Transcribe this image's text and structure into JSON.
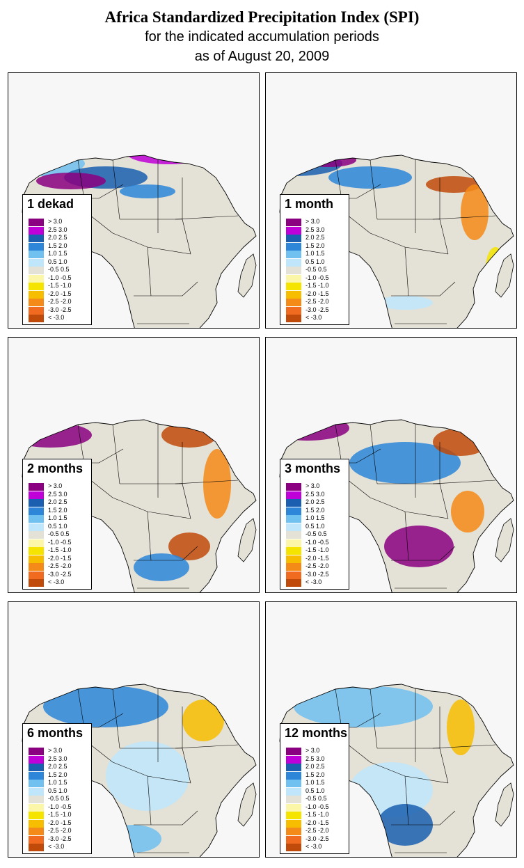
{
  "title": "Africa Standardized Precipitation Index (SPI)",
  "subtitle_line1": "for the indicated accumulation periods",
  "subtitle_line2": "as of August 20, 2009",
  "legend": [
    {
      "label": "> 3.0",
      "color": "#8b0080"
    },
    {
      "label": "2.5  3.0",
      "color": "#c000d8"
    },
    {
      "label": "2.0  2.5",
      "color": "#1a5fb0"
    },
    {
      "label": "1.5  2.0",
      "color": "#2d86d8"
    },
    {
      "label": "1.0  1.5",
      "color": "#70c0f0"
    },
    {
      "label": "0.5  1.0",
      "color": "#bfe6fb"
    },
    {
      "label": "-0.5  0.5",
      "color": "#e4e1d6"
    },
    {
      "label": "-1.0 -0.5",
      "color": "#fbf6a8"
    },
    {
      "label": "-1.5 -1.0",
      "color": "#f5e400"
    },
    {
      "label": "-2.0 -1.5",
      "color": "#f7bd00"
    },
    {
      "label": "-2.5 -2.0",
      "color": "#f48a18"
    },
    {
      "label": "-3.0 -2.5",
      "color": "#f06a20"
    },
    {
      "label": "< -3.0",
      "color": "#c04a0a"
    }
  ],
  "panels": [
    {
      "label": "1 dekad"
    },
    {
      "label": "1 month"
    },
    {
      "label": "2 months"
    },
    {
      "label": "3 months"
    },
    {
      "label": "6 months"
    },
    {
      "label": "12 months"
    }
  ]
}
